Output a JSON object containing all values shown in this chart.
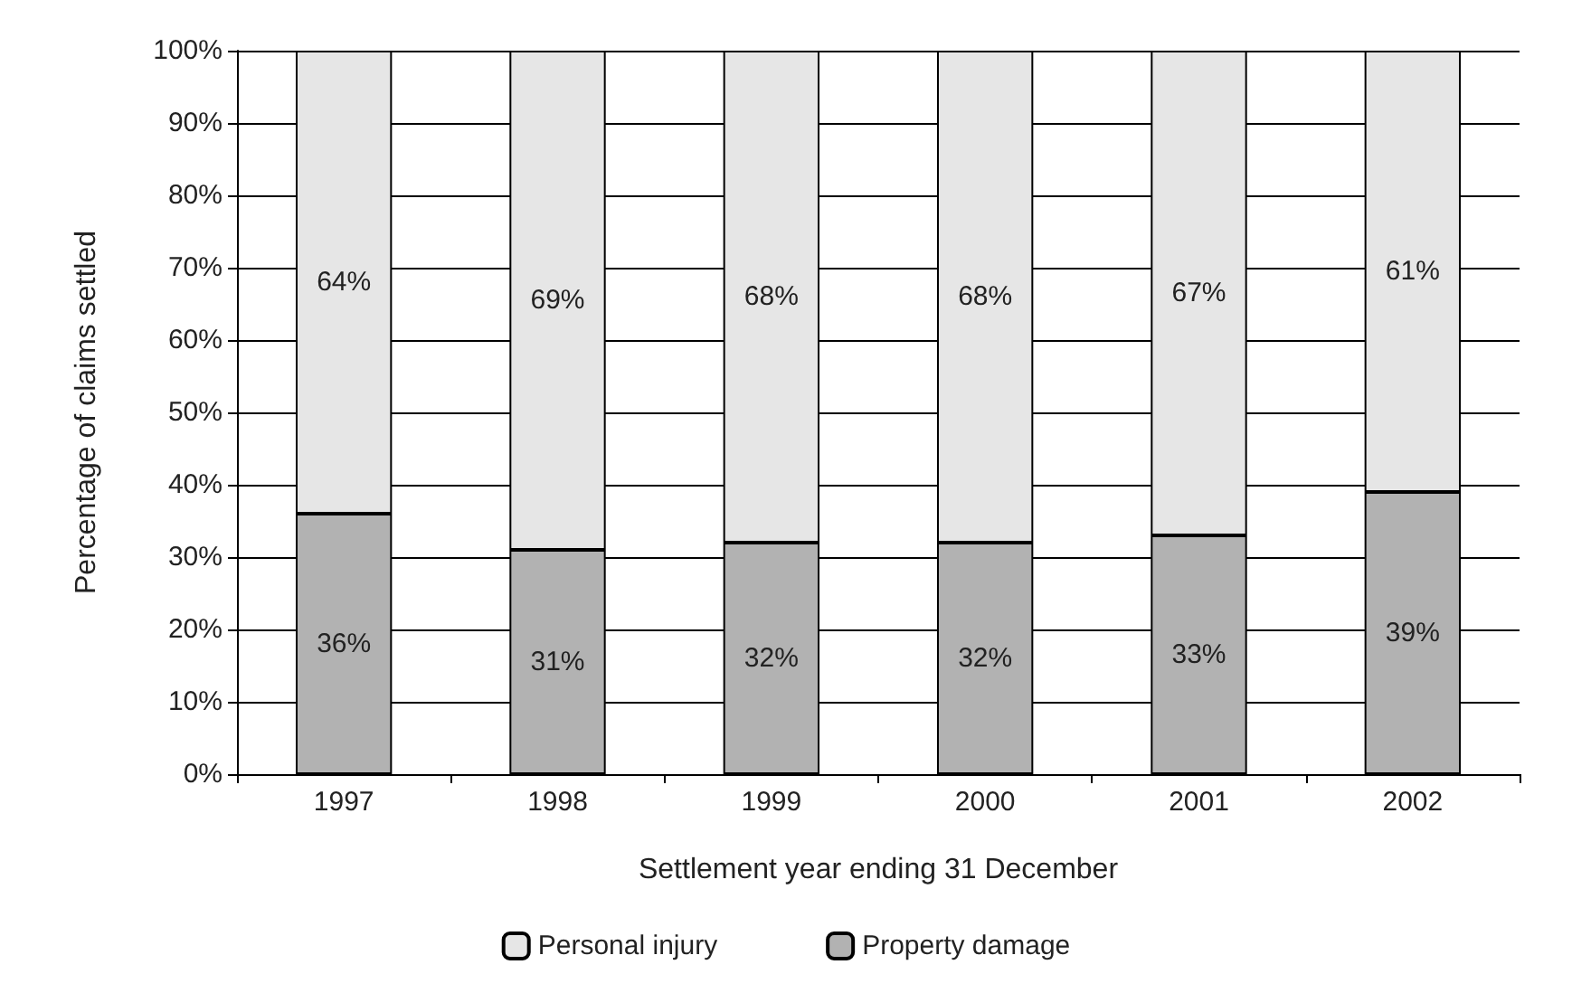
{
  "chart_data": {
    "type": "bar",
    "stacked": true,
    "xlabel": "Settlement year ending 31 December",
    "ylabel": "Percentage of claims settled",
    "categories": [
      "1997",
      "1998",
      "1999",
      "2000",
      "2001",
      "2002"
    ],
    "series": [
      {
        "name": "Property damage",
        "color": "#b2b2b2",
        "values": [
          36,
          31,
          32,
          32,
          33,
          39
        ],
        "value_labels": [
          "36%",
          "31%",
          "32%",
          "32%",
          "33%",
          "39%"
        ]
      },
      {
        "name": "Personal injury",
        "color": "#e6e6e6",
        "values": [
          64,
          69,
          68,
          68,
          67,
          61
        ],
        "value_labels": [
          "64%",
          "69%",
          "68%",
          "68%",
          "67%",
          "61%"
        ]
      }
    ],
    "ylim": [
      0,
      100
    ],
    "yticks": [
      {
        "value": 0,
        "label": "0%"
      },
      {
        "value": 10,
        "label": "10%"
      },
      {
        "value": 20,
        "label": "20%"
      },
      {
        "value": 30,
        "label": "30%"
      },
      {
        "value": 40,
        "label": "40%"
      },
      {
        "value": 50,
        "label": "50%"
      },
      {
        "value": 60,
        "label": "60%"
      },
      {
        "value": 70,
        "label": "70%"
      },
      {
        "value": 80,
        "label": "80%"
      },
      {
        "value": 90,
        "label": "90%"
      },
      {
        "value": 100,
        "label": "100%"
      }
    ],
    "grid": "y",
    "legend": "bottom"
  }
}
